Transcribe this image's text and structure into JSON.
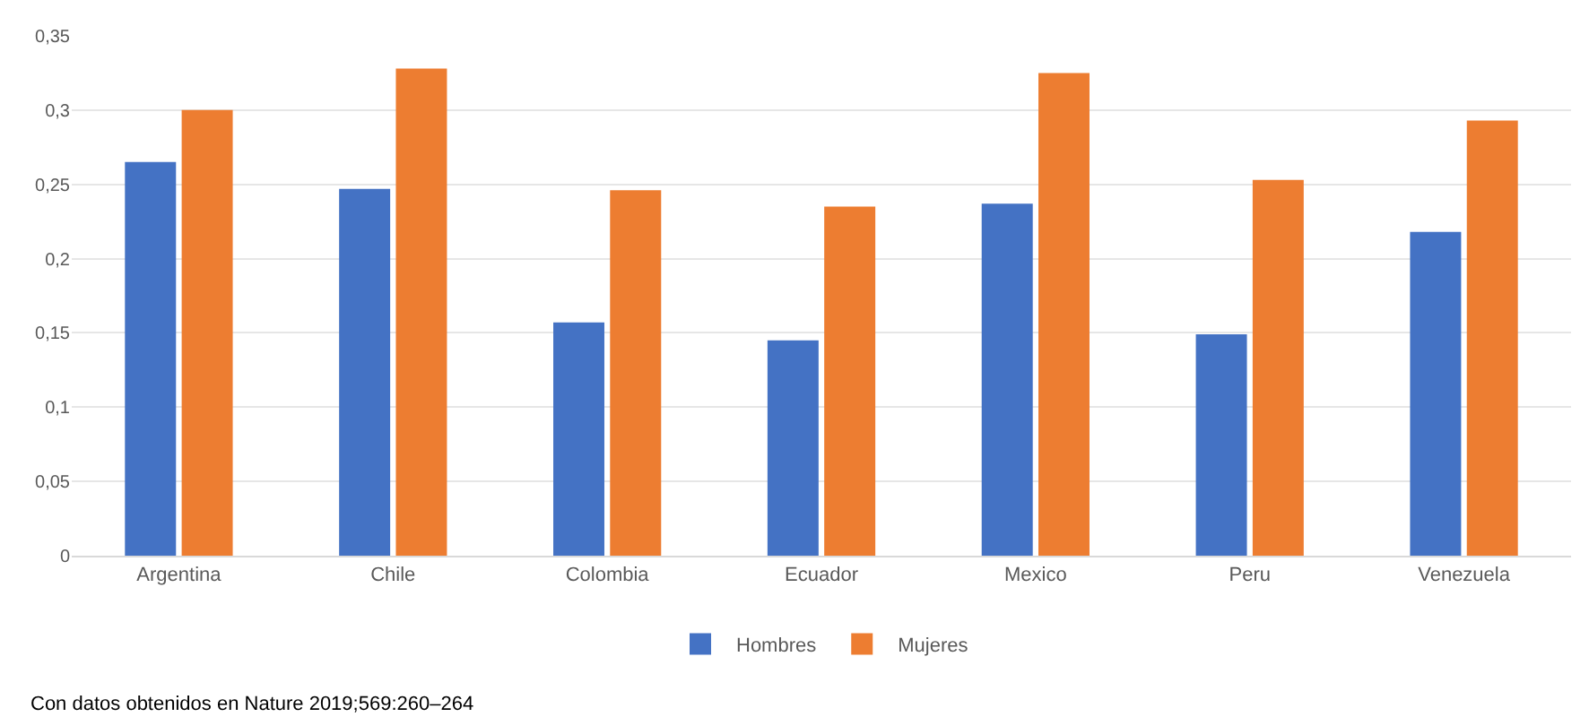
{
  "chart_data": {
    "type": "bar",
    "categories": [
      "Argentina",
      "Chile",
      "Colombia",
      "Ecuador",
      "Mexico",
      "Peru",
      "Venezuela"
    ],
    "series": [
      {
        "name": "Hombres",
        "color": "#4472c4",
        "values": [
          0.265,
          0.247,
          0.157,
          0.145,
          0.237,
          0.149,
          0.218
        ]
      },
      {
        "name": "Mujeres",
        "color": "#ed7d31",
        "values": [
          0.3,
          0.328,
          0.246,
          0.235,
          0.325,
          0.253,
          0.293
        ]
      }
    ],
    "ylim": [
      0,
      0.35
    ],
    "yticks": [
      {
        "value": 0,
        "label": "0"
      },
      {
        "value": 0.05,
        "label": "0,05"
      },
      {
        "value": 0.1,
        "label": "0,1"
      },
      {
        "value": 0.15,
        "label": "0,15"
      },
      {
        "value": 0.2,
        "label": "0,2"
      },
      {
        "value": 0.25,
        "label": "0,25"
      },
      {
        "value": 0.3,
        "label": "0,3"
      },
      {
        "value": 0.35,
        "label": "0,35"
      }
    ],
    "grid": "y",
    "legend": "bottom",
    "annotations": [
      "Con datos obtenidos en Nature 2019;569:260–264"
    ]
  }
}
